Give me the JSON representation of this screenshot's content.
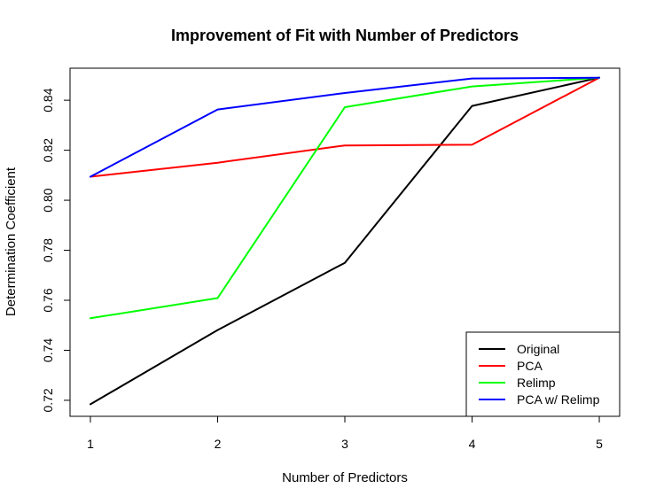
{
  "chart_data": {
    "type": "line",
    "title": "Improvement of Fit with Number of Predictors",
    "xlabel": "Number of Predictors",
    "ylabel": "Determination Coefficient",
    "x": [
      1,
      2,
      3,
      4,
      5
    ],
    "xticks": [
      "1",
      "2",
      "3",
      "4",
      "5"
    ],
    "yticks": [
      "0.72",
      "0.74",
      "0.76",
      "0.78",
      "0.80",
      "0.82",
      "0.84"
    ],
    "xlim": [
      0.84,
      5.16
    ],
    "ylim": [
      0.7136,
      0.8528
    ],
    "grid": false,
    "legend_position": "bottom-right",
    "series": [
      {
        "name": "Original",
        "color": "#000000",
        "values": [
          0.7184,
          0.7481,
          0.775,
          0.8377,
          0.849
        ]
      },
      {
        "name": "PCA",
        "color": "#ff0000",
        "values": [
          0.8094,
          0.815,
          0.8219,
          0.8222,
          0.849
        ]
      },
      {
        "name": "Relimp",
        "color": "#00ff00",
        "values": [
          0.7528,
          0.7609,
          0.8372,
          0.8455,
          0.849
        ]
      },
      {
        "name": "PCA w/ Relimp",
        "color": "#0000ff",
        "values": [
          0.8094,
          0.8363,
          0.8429,
          0.8487,
          0.849
        ]
      }
    ]
  }
}
